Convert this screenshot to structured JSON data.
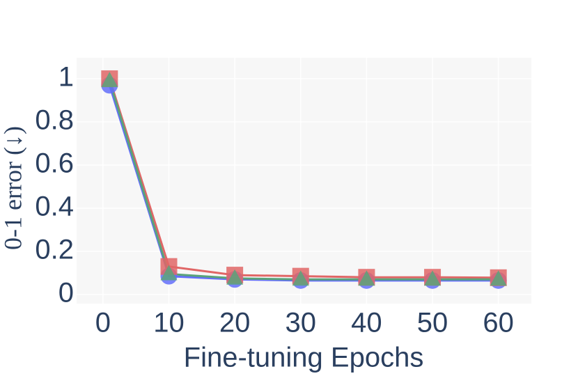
{
  "chart_data": {
    "type": "line",
    "x_label": "Fine-tuning Epochs",
    "y_label": "0-1 error (↓)",
    "x": [
      1,
      10,
      20,
      30,
      40,
      50,
      60
    ],
    "series": [
      {
        "color": "#636efa",
        "marker": "circle",
        "values": [
          0.97,
          0.085,
          0.07,
          0.065,
          0.065,
          0.065,
          0.065
        ]
      },
      {
        "color": "#e06666",
        "marker": "square",
        "values": [
          1.0,
          0.13,
          0.09,
          0.085,
          0.08,
          0.08,
          0.078
        ]
      },
      {
        "color": "#5aa37a",
        "marker": "triangle",
        "values": [
          0.99,
          0.095,
          0.075,
          0.07,
          0.07,
          0.07,
          0.07
        ]
      }
    ],
    "xlim": [
      -4,
      65
    ],
    "xticks": [
      0,
      10,
      20,
      30,
      40,
      50,
      60
    ],
    "ylim": [
      -0.042,
      1.097
    ],
    "yticks": [
      0,
      0.2,
      0.4,
      0.6,
      0.8,
      1
    ],
    "grid": true
  }
}
